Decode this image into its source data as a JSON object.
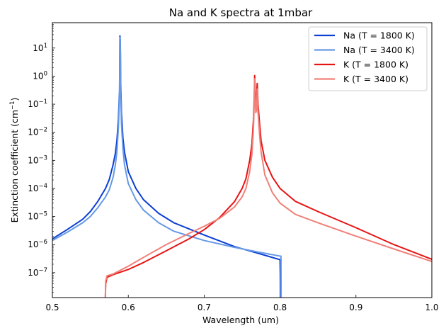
{
  "chart_data": {
    "type": "line",
    "title": "Na and K spectra at 1mbar",
    "xlabel": "Wavelength (um)",
    "ylabel_main": "Extinction coefficient (cm",
    "ylabel_sup": "−1",
    "ylabel_close": ")",
    "xlim": [
      0.5,
      1.0
    ],
    "ylim": [
      1.3e-08,
      80
    ],
    "yscale": "log",
    "grid": false,
    "legend": "top-right",
    "x_ticks": [
      {
        "value": 0.5,
        "label": "0.5"
      },
      {
        "value": 0.6,
        "label": "0.6"
      },
      {
        "value": 0.7,
        "label": "0.7"
      },
      {
        "value": 0.8,
        "label": "0.8"
      },
      {
        "value": 0.9,
        "label": "0.9"
      },
      {
        "value": 1.0,
        "label": "1.0"
      }
    ],
    "y_ticks": [
      {
        "exp": 1,
        "base": "10",
        "sup": "1"
      },
      {
        "exp": 0,
        "base": "10",
        "sup": "0"
      },
      {
        "exp": -1,
        "base": "10",
        "sup": "−1"
      },
      {
        "exp": -2,
        "base": "10",
        "sup": "−2"
      },
      {
        "exp": -3,
        "base": "10",
        "sup": "−3"
      },
      {
        "exp": -4,
        "base": "10",
        "sup": "−4"
      },
      {
        "exp": -5,
        "base": "10",
        "sup": "−5"
      },
      {
        "exp": -6,
        "base": "10",
        "sup": "−6"
      },
      {
        "exp": -7,
        "base": "10",
        "sup": "−7"
      }
    ],
    "series": [
      {
        "name": "Na (T = 1800 K)",
        "color": "#0a3fd4",
        "points": [
          [
            0.5,
            1.6e-06
          ],
          [
            0.52,
            3.5e-06
          ],
          [
            0.54,
            8e-06
          ],
          [
            0.55,
            1.5e-05
          ],
          [
            0.56,
            3.5e-05
          ],
          [
            0.57,
            0.0001
          ],
          [
            0.575,
            0.00021
          ],
          [
            0.58,
            0.0007
          ],
          [
            0.583,
            0.0018
          ],
          [
            0.585,
            0.005
          ],
          [
            0.587,
            0.03
          ],
          [
            0.5885,
            0.3
          ],
          [
            0.589,
            27
          ],
          [
            0.5893,
            22
          ],
          [
            0.5896,
            10
          ],
          [
            0.59,
            0.6
          ],
          [
            0.591,
            0.05
          ],
          [
            0.593,
            0.006
          ],
          [
            0.595,
            0.002
          ],
          [
            0.6,
            0.0004
          ],
          [
            0.61,
            0.0001
          ],
          [
            0.62,
            4e-05
          ],
          [
            0.64,
            1.3e-05
          ],
          [
            0.66,
            6e-06
          ],
          [
            0.7,
            2.2e-06
          ],
          [
            0.74,
            8.5e-07
          ],
          [
            0.77,
            5e-07
          ],
          [
            0.8,
            2.9e-07
          ],
          [
            0.8003,
            1e-07
          ],
          [
            0.8005,
            1.3e-08
          ]
        ]
      },
      {
        "name": "Na (T = 3400 K)",
        "color": "#6699e6",
        "points": [
          [
            0.5,
            1.4e-06
          ],
          [
            0.52,
            2.8e-06
          ],
          [
            0.54,
            6e-06
          ],
          [
            0.55,
            1e-05
          ],
          [
            0.56,
            2.1e-05
          ],
          [
            0.57,
            5e-05
          ],
          [
            0.575,
            9e-05
          ],
          [
            0.58,
            0.00025
          ],
          [
            0.583,
            0.0007
          ],
          [
            0.585,
            0.002
          ],
          [
            0.587,
            0.015
          ],
          [
            0.5885,
            0.2
          ],
          [
            0.589,
            24
          ],
          [
            0.5893,
            20
          ],
          [
            0.5896,
            8
          ],
          [
            0.59,
            0.3
          ],
          [
            0.591,
            0.02
          ],
          [
            0.593,
            0.0025
          ],
          [
            0.595,
            0.0007
          ],
          [
            0.6,
            0.00015
          ],
          [
            0.61,
            4e-05
          ],
          [
            0.62,
            1.7e-05
          ],
          [
            0.64,
            6e-06
          ],
          [
            0.66,
            3e-06
          ],
          [
            0.7,
            1.4e-06
          ],
          [
            0.74,
            8e-07
          ],
          [
            0.77,
            5.5e-07
          ],
          [
            0.8,
            3.9e-07
          ],
          [
            0.8012,
            3.9e-07
          ],
          [
            0.8014,
            1.3e-08
          ]
        ]
      },
      {
        "name": "K (T = 1800 K)",
        "color": "#e61414",
        "points": [
          [
            0.5698,
            1.3e-08
          ],
          [
            0.5702,
            4e-08
          ],
          [
            0.572,
            6.8e-08
          ],
          [
            0.58,
            8.5e-08
          ],
          [
            0.6,
            1.3e-07
          ],
          [
            0.62,
            2.3e-07
          ],
          [
            0.65,
            6e-07
          ],
          [
            0.68,
            1.6e-06
          ],
          [
            0.7,
            3.4e-06
          ],
          [
            0.72,
            9e-06
          ],
          [
            0.74,
            3.4e-05
          ],
          [
            0.75,
            0.0001
          ],
          [
            0.755,
            0.00022
          ],
          [
            0.76,
            0.001
          ],
          [
            0.763,
            0.004
          ],
          [
            0.765,
            0.03
          ],
          [
            0.766,
            0.2
          ],
          [
            0.7665,
            1.05
          ],
          [
            0.767,
            0.5
          ],
          [
            0.768,
            0.1
          ],
          [
            0.769,
            0.15
          ],
          [
            0.7699,
            0.55
          ],
          [
            0.771,
            0.1
          ],
          [
            0.773,
            0.02
          ],
          [
            0.775,
            0.005
          ],
          [
            0.78,
            0.001
          ],
          [
            0.79,
            0.00025
          ],
          [
            0.8,
            0.0001
          ],
          [
            0.82,
            3.5e-05
          ],
          [
            0.85,
            1.5e-05
          ],
          [
            0.9,
            4e-06
          ],
          [
            0.95,
            1e-06
          ],
          [
            1.0,
            3e-07
          ]
        ]
      },
      {
        "name": "K (T = 3400 K)",
        "color": "#f08078",
        "points": [
          [
            0.5698,
            1.3e-08
          ],
          [
            0.5702,
            5e-08
          ],
          [
            0.572,
            7.8e-08
          ],
          [
            0.58,
            9e-08
          ],
          [
            0.6,
            1.7e-07
          ],
          [
            0.62,
            3.5e-07
          ],
          [
            0.65,
            1e-06
          ],
          [
            0.68,
            2.5e-06
          ],
          [
            0.7,
            4.5e-06
          ],
          [
            0.72,
            8.5e-06
          ],
          [
            0.74,
            2.2e-05
          ],
          [
            0.75,
            5e-05
          ],
          [
            0.755,
            0.0001
          ],
          [
            0.76,
            0.0004
          ],
          [
            0.763,
            0.0017
          ],
          [
            0.765,
            0.015
          ],
          [
            0.766,
            0.12
          ],
          [
            0.7665,
            0.8
          ],
          [
            0.767,
            0.3
          ],
          [
            0.768,
            0.05
          ],
          [
            0.769,
            0.06
          ],
          [
            0.7699,
            0.35
          ],
          [
            0.771,
            0.05
          ],
          [
            0.773,
            0.008
          ],
          [
            0.775,
            0.002
          ],
          [
            0.78,
            0.0003
          ],
          [
            0.79,
            7e-05
          ],
          [
            0.8,
            3e-05
          ],
          [
            0.82,
            1.2e-05
          ],
          [
            0.85,
            6e-06
          ],
          [
            0.9,
            2e-06
          ],
          [
            0.95,
            7e-07
          ],
          [
            1.0,
            2.5e-07
          ]
        ]
      }
    ]
  }
}
